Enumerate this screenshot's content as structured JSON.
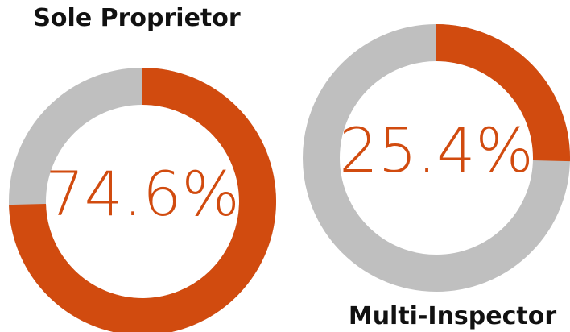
{
  "chart_data": [
    {
      "type": "donut",
      "title": "Sole Proprietor",
      "values": [
        74.6
      ],
      "value_labels": [
        "74.6%"
      ],
      "ylim": [
        0,
        100
      ],
      "color": "#d14b0f",
      "track_color": "#bfbfbf"
    },
    {
      "type": "donut",
      "title": "Multi-Inspector",
      "values": [
        25.4
      ],
      "value_labels": [
        "25.4%"
      ],
      "ylim": [
        0,
        100
      ],
      "color": "#d14b0f",
      "track_color": "#bfbfbf"
    }
  ]
}
